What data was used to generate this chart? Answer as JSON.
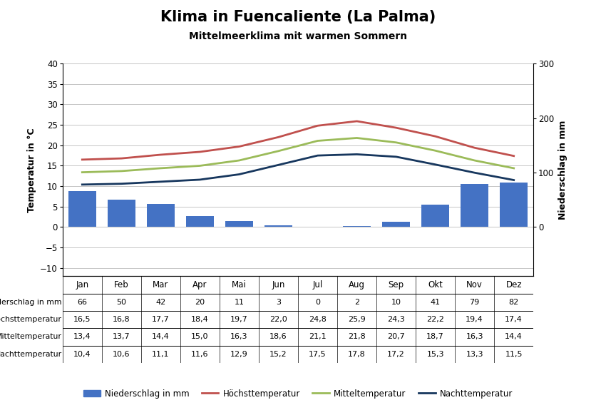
{
  "title": "Klima in Fuencaliente (La Palma)",
  "subtitle": "Mittelmeerklima mit warmen Sommern",
  "months": [
    "Jan",
    "Feb",
    "Mar",
    "Apr",
    "Mai",
    "Jun",
    "Jul",
    "Aug",
    "Sep",
    "Okt",
    "Nov",
    "Dez"
  ],
  "niederschlag": [
    66,
    50,
    42,
    20,
    11,
    3,
    0,
    2,
    10,
    41,
    79,
    82
  ],
  "hoechsttemperatur": [
    16.5,
    16.8,
    17.7,
    18.4,
    19.7,
    22.0,
    24.8,
    25.9,
    24.3,
    22.2,
    19.4,
    17.4
  ],
  "mitteltemperatur": [
    13.4,
    13.7,
    14.4,
    15.0,
    16.3,
    18.6,
    21.1,
    21.8,
    20.7,
    18.7,
    16.3,
    14.4
  ],
  "nachttemperatur": [
    10.4,
    10.6,
    11.1,
    11.6,
    12.9,
    15.2,
    17.5,
    17.8,
    17.2,
    15.3,
    13.3,
    11.5
  ],
  "bar_color": "#4472C4",
  "hoechst_color": "#C0504D",
  "mittel_color": "#9BBB59",
  "nacht_color": "#17375E",
  "temp_ylim_min": -12,
  "temp_ylim_max": 40,
  "temp_yticks": [
    -10,
    -5,
    0,
    5,
    10,
    15,
    20,
    25,
    30,
    35,
    40
  ],
  "precip_ylim_min": 0,
  "precip_ylim_max": 300,
  "precip_yticks": [
    0,
    100,
    200,
    300
  ],
  "ylabel_left": "Temperatur in °C",
  "ylabel_right": "Niederschlag in mm",
  "table_rows": [
    "Niederschlag in mm",
    "Höchsttemperatur",
    "Mitteltemperatur",
    "Nachttemperatur"
  ],
  "legend_labels": [
    "Niederschlag in mm",
    "Höchsttemperatur",
    "Mitteltemperatur",
    "Nachttemperatur"
  ],
  "background_color": "#FFFFFF",
  "grid_color": "#BBBBBB",
  "border_color": "#000000"
}
